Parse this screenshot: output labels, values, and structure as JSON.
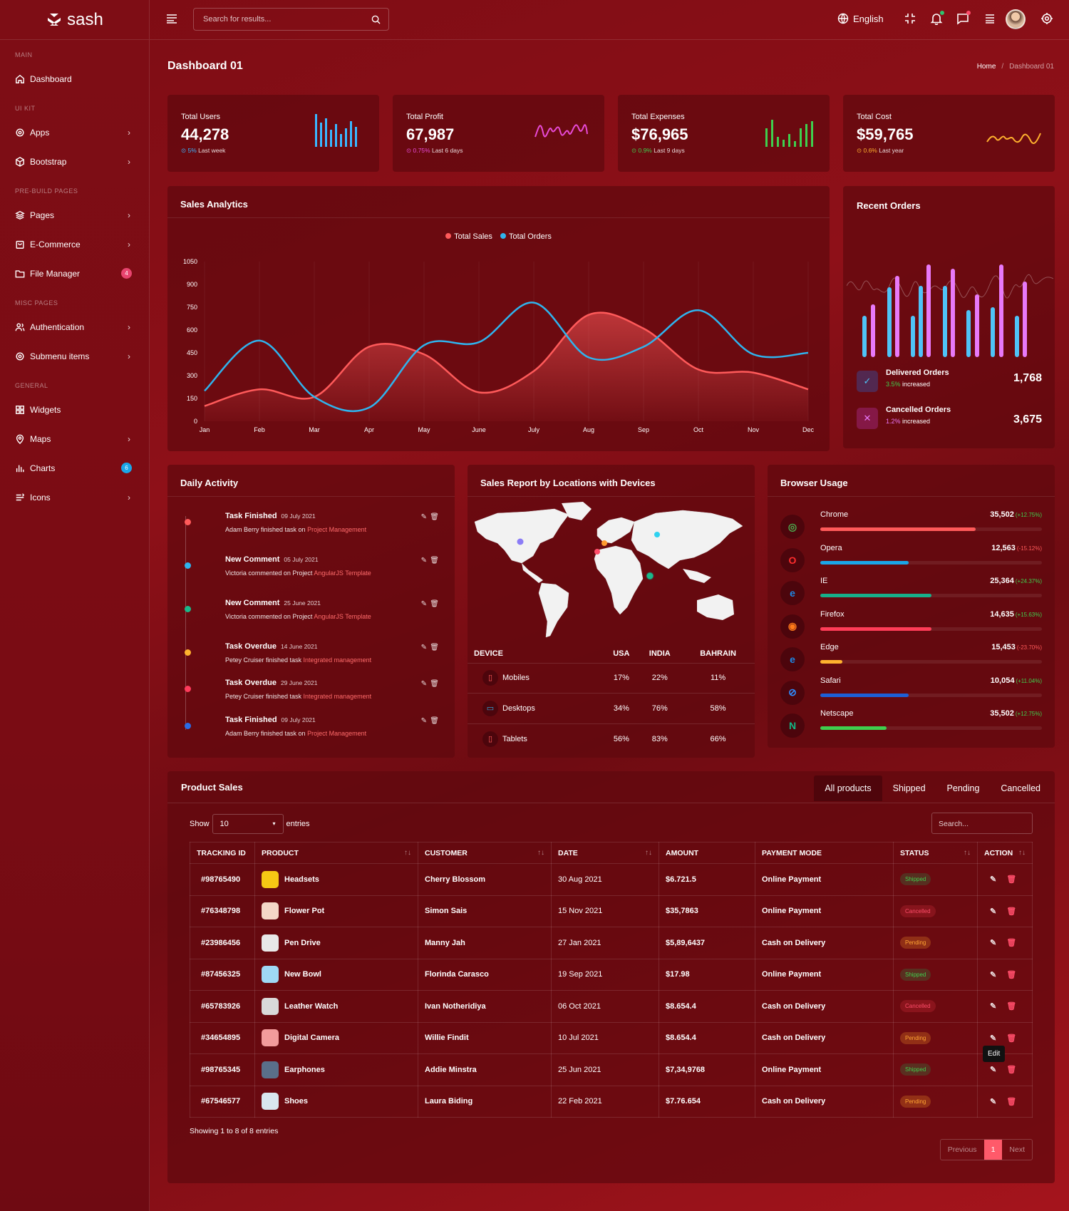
{
  "app": {
    "logo": "sash"
  },
  "sidebar": {
    "sections": [
      "MAIN",
      "UI KIT",
      "PRE-BUILD PAGES",
      "MISC PAGES",
      "GENERAL"
    ],
    "items": [
      {
        "label": "Dashboard"
      },
      {
        "label": "Apps"
      },
      {
        "label": "Bootstrap"
      },
      {
        "label": "Pages"
      },
      {
        "label": "E-Commerce"
      },
      {
        "label": "File Manager",
        "badge": "4"
      },
      {
        "label": "Authentication"
      },
      {
        "label": "Submenu items"
      },
      {
        "label": "Widgets"
      },
      {
        "label": "Maps"
      },
      {
        "label": "Charts",
        "badge": "6"
      },
      {
        "label": "Icons"
      }
    ]
  },
  "topbar": {
    "search_placeholder": "Search for results...",
    "language": "English"
  },
  "page": {
    "title": "Dashboard 01",
    "breadcrumb": [
      "Home",
      "Dashboard 01"
    ]
  },
  "stats": [
    {
      "label": "Total Users",
      "value": "44,278",
      "change": "5%",
      "period": "Last week",
      "color": "#3ab6ff"
    },
    {
      "label": "Total Profit",
      "value": "67,987",
      "change": "0.75%",
      "period": "Last 6 days",
      "color": "#e84bd9"
    },
    {
      "label": "Total Expenses",
      "value": "$76,965",
      "change": "0.9%",
      "period": "Last 9 days",
      "color": "#3fcf4e"
    },
    {
      "label": "Total Cost",
      "value": "$59,765",
      "change": "0.6%",
      "period": "Last year",
      "color": "#ffb22e"
    }
  ],
  "sales_analytics": {
    "title": "Sales Analytics"
  },
  "chart_data": {
    "type": "line",
    "legend": [
      "Total Sales",
      "Total Orders"
    ],
    "categories": [
      "Jan",
      "Feb",
      "Mar",
      "Apr",
      "May",
      "June",
      "July",
      "Aug",
      "Sep",
      "Oct",
      "Nov",
      "Dec"
    ],
    "yticks": [
      0,
      150,
      300,
      450,
      600,
      750,
      900,
      1050
    ],
    "ylim": [
      0,
      1050
    ],
    "series": [
      {
        "name": "Total Sales",
        "type": "area",
        "color": "#ff5a5a",
        "values": [
          100,
          210,
          160,
          490,
          440,
          190,
          330,
          700,
          610,
          340,
          320,
          210
        ]
      },
      {
        "name": "Total Orders",
        "type": "line",
        "color": "#2fb4ee",
        "values": [
          200,
          530,
          160,
          90,
          500,
          520,
          780,
          420,
          490,
          730,
          440,
          450
        ]
      }
    ]
  },
  "recent_orders": {
    "title": "Recent Orders",
    "rows": [
      {
        "label": "Delivered Orders",
        "pct": "3.5%",
        "suffix": "increased",
        "value": "1,768"
      },
      {
        "label": "Cancelled Orders",
        "pct": "1.2%",
        "suffix": "increased",
        "value": "3,675"
      }
    ]
  },
  "daily_activity": {
    "title": "Daily Activity",
    "items": [
      {
        "title": "Task Finished",
        "date": "09 July 2021",
        "desc": "Adam Berry finished task on ",
        "link": "Project Management",
        "color": "#ff5a5a"
      },
      {
        "title": "New Comment",
        "date": "05 July 2021",
        "desc": "Victoria commented on Project ",
        "link": "AngularJS Template",
        "color": "#2fb4ee"
      },
      {
        "title": "New Comment",
        "date": "25 June 2021",
        "desc": "Victoria commented on Project ",
        "link": "AngularJS Template",
        "color": "#1bb98a"
      },
      {
        "title": "Task Overdue",
        "date": "14 June 2021",
        "desc": "Petey Cruiser finished task ",
        "link": "Integrated management",
        "color": "#ffb22e"
      },
      {
        "title": "Task Overdue",
        "date": "29 June 2021",
        "desc": "Petey Cruiser finished task ",
        "link": "Integrated management",
        "color": "#ff3b5c"
      },
      {
        "title": "Task Finished",
        "date": "09 July 2021",
        "desc": "Adam Berry finished task on ",
        "link": "Project Management",
        "color": "#2a6ce6"
      }
    ]
  },
  "sales_report": {
    "title": "Sales Report by Locations with Devices",
    "headers": [
      "DEVICE",
      "USA",
      "INDIA",
      "BAHRAIN"
    ],
    "rows": [
      {
        "device": "Mobiles",
        "usa": "17%",
        "india": "22%",
        "bahrain": "11%"
      },
      {
        "device": "Desktops",
        "usa": "34%",
        "india": "76%",
        "bahrain": "58%"
      },
      {
        "device": "Tablets",
        "usa": "56%",
        "india": "83%",
        "bahrain": "66%"
      }
    ]
  },
  "browser_usage": {
    "title": "Browser Usage",
    "items": [
      {
        "name": "Chrome",
        "value": "35,502",
        "change": "(+12.75%)",
        "pct": 0.7,
        "color": "#ff5a5a"
      },
      {
        "name": "Opera",
        "value": "12,563",
        "change": "(-15.12%)",
        "pct": 0.4,
        "color": "#1aa6e8"
      },
      {
        "name": "IE",
        "value": "25,364",
        "change": "(+24.37%)",
        "pct": 0.5,
        "color": "#17b08a"
      },
      {
        "name": "Firefox",
        "value": "14,635",
        "change": "(+15.63%)",
        "pct": 0.5,
        "color": "#ff3d58"
      },
      {
        "name": "Edge",
        "value": "15,453",
        "change": "(-23.70%)",
        "pct": 0.1,
        "color": "#ffb22e"
      },
      {
        "name": "Safari",
        "value": "10,054",
        "change": "(+11.04%)",
        "pct": 0.4,
        "color": "#1d5fd6"
      },
      {
        "name": "Netscape",
        "value": "35,502",
        "change": "(+12.75%)",
        "pct": 0.3,
        "color": "#3fcf4e"
      }
    ]
  },
  "product_sales": {
    "title": "Product Sales",
    "tabs": [
      "All products",
      "Shipped",
      "Pending",
      "Cancelled"
    ],
    "show_label": "Show",
    "entries_value": "10",
    "entries_label": "entries",
    "search_placeholder": "Search...",
    "headers": [
      "TRACKING ID",
      "PRODUCT",
      "CUSTOMER",
      "DATE",
      "AMOUNT",
      "PAYMENT MODE",
      "STATUS",
      "ACTION"
    ],
    "rows": [
      {
        "id": "#98765490",
        "product": "Headsets",
        "customer": "Cherry Blossom",
        "date": "30 Aug 2021",
        "amount": "$6.721.5",
        "mode": "Online Payment",
        "status": "Shipped"
      },
      {
        "id": "#76348798",
        "product": "Flower Pot",
        "customer": "Simon Sais",
        "date": "15 Nov 2021",
        "amount": "$35,7863",
        "mode": "Online Payment",
        "status": "Cancelled"
      },
      {
        "id": "#23986456",
        "product": "Pen Drive",
        "customer": "Manny Jah",
        "date": "27 Jan 2021",
        "amount": "$5,89,6437",
        "mode": "Cash on Delivery",
        "status": "Pending"
      },
      {
        "id": "#87456325",
        "product": "New Bowl",
        "customer": "Florinda Carasco",
        "date": "19 Sep 2021",
        "amount": "$17.98",
        "mode": "Online Payment",
        "status": "Shipped"
      },
      {
        "id": "#65783926",
        "product": "Leather Watch",
        "customer": "Ivan Notheridiya",
        "date": "06 Oct 2021",
        "amount": "$8.654.4",
        "mode": "Cash on Delivery",
        "status": "Cancelled"
      },
      {
        "id": "#34654895",
        "product": "Digital Camera",
        "customer": "Willie Findit",
        "date": "10 Jul 2021",
        "amount": "$8.654.4",
        "mode": "Cash on Delivery",
        "status": "Pending"
      },
      {
        "id": "#98765345",
        "product": "Earphones",
        "customer": "Addie Minstra",
        "date": "25 Jun 2021",
        "amount": "$7,34,9768",
        "mode": "Online Payment",
        "status": "Shipped"
      },
      {
        "id": "#67546577",
        "product": "Shoes",
        "customer": "Laura Biding",
        "date": "22 Feb 2021",
        "amount": "$7.76.654",
        "mode": "Cash on Delivery",
        "status": "Pending"
      }
    ],
    "tooltip": "Edit",
    "showing": "Showing 1 to 8 of 8 entries",
    "pagination": {
      "prev": "Previous",
      "current": "1",
      "next": "Next"
    }
  }
}
